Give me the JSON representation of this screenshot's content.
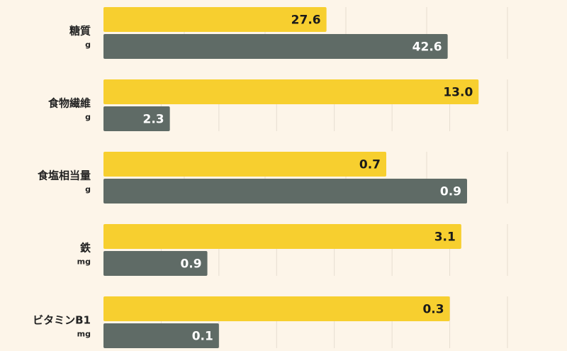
{
  "chart_data": {
    "type": "bar",
    "orientation": "horizontal",
    "colors": {
      "series_a": "#f7cf2f",
      "series_b": "#5f6b66",
      "background": "#fdf5e9",
      "grid": "#e6ddd0"
    },
    "groups": [
      {
        "name": "糖質",
        "unit": "g",
        "values": [
          27.6,
          42.6
        ],
        "labels": [
          "27.6",
          "42.6"
        ],
        "xlim": [
          0,
          50
        ],
        "grid_step": 10
      },
      {
        "name": "食物繊維",
        "unit": "g",
        "values": [
          13.0,
          2.3
        ],
        "labels": [
          "13.0",
          "2.3"
        ],
        "xlim": [
          0,
          14
        ],
        "grid_step": 2
      },
      {
        "name": "食塩相当量",
        "unit": "g",
        "values": [
          0.7,
          0.9
        ],
        "labels": [
          "0.7",
          "0.9"
        ],
        "xlim": [
          0,
          1.0
        ],
        "grid_step": 0.2
      },
      {
        "name": "鉄",
        "unit": "mg",
        "values": [
          3.1,
          0.9
        ],
        "labels": [
          "3.1",
          "0.9"
        ],
        "xlim": [
          0,
          3.5
        ],
        "grid_step": 0.5
      },
      {
        "name": "ビタミンB1",
        "unit": "mg",
        "values": [
          0.3,
          0.1
        ],
        "labels": [
          "0.3",
          "0.1"
        ],
        "xlim": [
          0,
          0.35
        ],
        "grid_step": 0.05
      }
    ]
  }
}
